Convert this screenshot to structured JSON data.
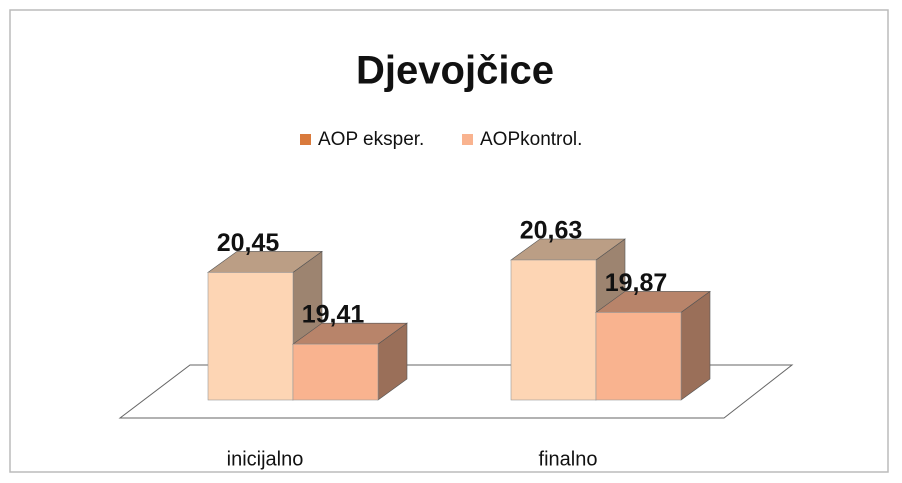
{
  "chart_data": {
    "type": "bar3d",
    "title": "Djevojčice",
    "categories": [
      "inicijalno",
      "finalno"
    ],
    "series": [
      {
        "name": "AOP eksper.",
        "color": "#fdd5b4",
        "values": [
          20.45,
          20.63
        ],
        "value_labels": [
          "20,45",
          "20,63"
        ]
      },
      {
        "name": "AOPkontrol.",
        "color": "#f9b38f",
        "values": [
          19.41,
          19.87
        ],
        "value_labels": [
          "19,41",
          "19,87"
        ]
      }
    ],
    "ylim": [
      18.6,
      21.5
    ]
  }
}
